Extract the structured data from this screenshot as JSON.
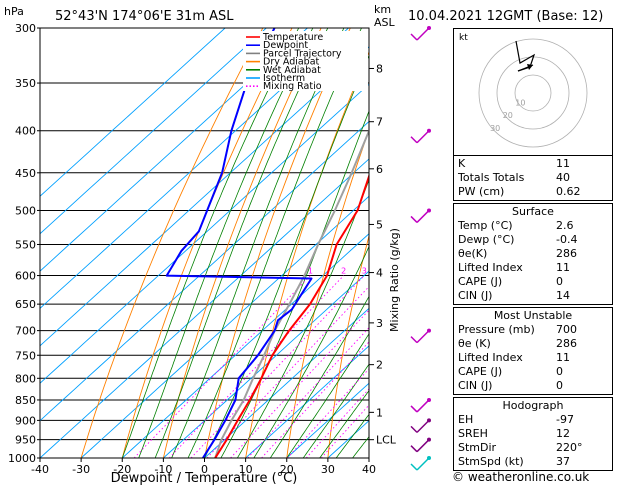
{
  "header": {
    "hpa_label": "hPa",
    "location": "52°43'N  174°06'E  31m  ASL",
    "km_label": "km",
    "asl_label": "ASL",
    "datetime": "10.04.2021  12GMT  (Base: 12)"
  },
  "chart_data": {
    "type": "skew-t",
    "xlabel": "Dewpoint / Temperature (°C)",
    "ylabel": "Mixing Ratio (g/kg)",
    "pressure_levels": [
      300,
      350,
      400,
      450,
      500,
      550,
      600,
      650,
      700,
      750,
      800,
      850,
      900,
      950,
      1000
    ],
    "temperature_ticks": [
      -40,
      -30,
      -20,
      -10,
      0,
      10,
      20,
      30,
      40
    ],
    "xlim": [
      -40,
      40
    ],
    "plim": [
      1000,
      300
    ],
    "altitude_km_ticks": [
      {
        "label": "8",
        "p": 336
      },
      {
        "label": "7",
        "p": 390
      },
      {
        "label": "6",
        "p": 445
      },
      {
        "label": "5",
        "p": 520
      },
      {
        "label": "4",
        "p": 595
      },
      {
        "label": "3",
        "p": 685
      },
      {
        "label": "2",
        "p": 770
      },
      {
        "label": "1",
        "p": 880
      },
      {
        "label": "LCL",
        "p": 950
      }
    ],
    "mixing_ratio_labels": [
      "1",
      "2",
      "3",
      "4",
      "6",
      "8",
      "10",
      "15",
      "20",
      "25"
    ],
    "legend": [
      {
        "name": "Temperature",
        "color": "#ff0000"
      },
      {
        "name": "Dewpoint",
        "color": "#0000ff"
      },
      {
        "name": "Parcel Trajectory",
        "color": "#808080"
      },
      {
        "name": "Dry Adiabat",
        "color": "#ff8000"
      },
      {
        "name": "Wet Adiabat",
        "color": "#008000"
      },
      {
        "name": "Isotherm",
        "color": "#00a0ff"
      },
      {
        "name": "Mixing Ratio",
        "color": "#ff00ff"
      }
    ],
    "temperature": [
      {
        "p": 1000,
        "t": 2.6
      },
      {
        "p": 950,
        "t": 0.5
      },
      {
        "p": 900,
        "t": -2.0
      },
      {
        "p": 850,
        "t": -4.5
      },
      {
        "p": 800,
        "t": -7.5
      },
      {
        "p": 750,
        "t": -11.0
      },
      {
        "p": 700,
        "t": -13.5
      },
      {
        "p": 650,
        "t": -15.5
      },
      {
        "p": 600,
        "t": -19.0
      },
      {
        "p": 550,
        "t": -25.0
      },
      {
        "p": 500,
        "t": -29.0
      },
      {
        "p": 450,
        "t": -36.0
      },
      {
        "p": 400,
        "t": -43.0
      },
      {
        "p": 350,
        "t": -50.0
      },
      {
        "p": 310,
        "t": -54.0
      },
      {
        "p": 300,
        "t": -53.0
      }
    ],
    "dewpoint": [
      {
        "p": 1000,
        "t": -0.4
      },
      {
        "p": 950,
        "t": -2.5
      },
      {
        "p": 900,
        "t": -5.0
      },
      {
        "p": 850,
        "t": -8.0
      },
      {
        "p": 800,
        "t": -13.0
      },
      {
        "p": 750,
        "t": -14.5
      },
      {
        "p": 700,
        "t": -17.0
      },
      {
        "p": 680,
        "t": -19.0
      },
      {
        "p": 660,
        "t": -18.5
      },
      {
        "p": 620,
        "t": -21.0
      },
      {
        "p": 605,
        "t": -22.0
      },
      {
        "p": 600,
        "t": -58.0
      },
      {
        "p": 560,
        "t": -61.0
      },
      {
        "p": 530,
        "t": -62.0
      },
      {
        "p": 450,
        "t": -72.0
      },
      {
        "p": 400,
        "t": -81.0
      },
      {
        "p": 350,
        "t": -90.0
      },
      {
        "p": 300,
        "t": -98.0
      }
    ],
    "parcel": [
      {
        "p": 1000,
        "t": 2.6
      },
      {
        "p": 950,
        "t": -0.8
      },
      {
        "p": 900,
        "t": -3.5
      },
      {
        "p": 850,
        "t": -6.0
      },
      {
        "p": 800,
        "t": -9.5
      },
      {
        "p": 750,
        "t": -13.0
      },
      {
        "p": 700,
        "t": -17.0
      },
      {
        "p": 650,
        "t": -20.5
      },
      {
        "p": 600,
        "t": -24.5
      },
      {
        "p": 550,
        "t": -29.5
      },
      {
        "p": 500,
        "t": -34.5
      },
      {
        "p": 450,
        "t": -40.5
      },
      {
        "p": 400,
        "t": -47.5
      },
      {
        "p": 350,
        "t": -55.5
      },
      {
        "p": 320,
        "t": -60.5
      }
    ],
    "wind_barbs_p": [
      300,
      400,
      500,
      700,
      850,
      900,
      950,
      1000
    ]
  },
  "panel": {
    "indices": [
      {
        "label": "K",
        "value": "11"
      },
      {
        "label": "Totals Totals",
        "value": "40"
      },
      {
        "label": "PW (cm)",
        "value": "0.62"
      }
    ],
    "surface": {
      "title": "Surface",
      "rows": [
        {
          "label": "Temp (°C)",
          "value": "2.6"
        },
        {
          "label": "Dewp (°C)",
          "value": "-0.4"
        },
        {
          "label": "θe(K)",
          "value": "286"
        },
        {
          "label": "Lifted Index",
          "value": "11"
        },
        {
          "label": "CAPE (J)",
          "value": "0"
        },
        {
          "label": "CIN (J)",
          "value": "14"
        }
      ]
    },
    "most_unstable": {
      "title": "Most Unstable",
      "rows": [
        {
          "label": "Pressure (mb)",
          "value": "700"
        },
        {
          "label": "θe (K)",
          "value": "286"
        },
        {
          "label": "Lifted Index",
          "value": "11"
        },
        {
          "label": "CAPE (J)",
          "value": "0"
        },
        {
          "label": "CIN (J)",
          "value": "0"
        }
      ]
    },
    "hodograph": {
      "title": "Hodograph",
      "rows": [
        {
          "label": "EH",
          "value": "-97"
        },
        {
          "label": "SREH",
          "value": "12"
        },
        {
          "label": "StmDir",
          "value": "220°"
        },
        {
          "label": "StmSpd (kt)",
          "value": "37"
        }
      ]
    }
  },
  "hodo_box": {
    "unit": "kt",
    "ring_labels": [
      "10",
      "20",
      "30"
    ]
  },
  "footer": "© weatheronline.co.uk"
}
